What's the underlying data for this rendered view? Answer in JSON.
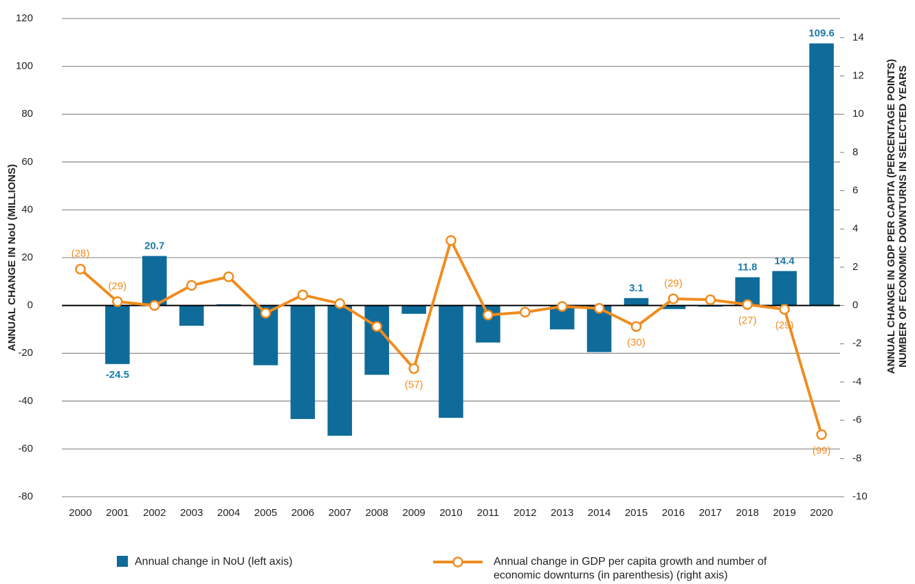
{
  "chart_data": {
    "type": "bar_line",
    "categories": [
      "2000",
      "2001",
      "2002",
      "2003",
      "2004",
      "2005",
      "2006",
      "2007",
      "2008",
      "2009",
      "2010",
      "2011",
      "2012",
      "2013",
      "2014",
      "2015",
      "2016",
      "2017",
      "2018",
      "2019",
      "2020"
    ],
    "ylabel": "ANNUAL CHANGE IN NoU (MILLIONS)",
    "y2label": [
      "ANNUAL CHANGE IN GDP PER CAPITA (PERCENTAGE POINTS)",
      "NUMBER OF ECONOMIC DOWNTURNS IN SELECTED YEARS"
    ],
    "ylim": [
      -80,
      120
    ],
    "yticks": [
      -80,
      -60,
      -40,
      -20,
      0,
      20,
      40,
      60,
      80,
      100,
      120
    ],
    "y2lim": [
      -10,
      15
    ],
    "y2ticks": [
      -10,
      -8,
      -6,
      -4,
      -2,
      0,
      2,
      4,
      6,
      8,
      10,
      12,
      14
    ],
    "grid": true,
    "series": [
      {
        "name": "Annual change in NoU (left axis)",
        "type": "bar",
        "color": "#0f6b9a",
        "label_color": "#1a7aa8",
        "values": [
          null,
          -24.5,
          20.7,
          -8.5,
          0.5,
          -25,
          -47.5,
          -54.5,
          -29,
          -3.5,
          -47,
          -15.5,
          null,
          -10,
          -19.5,
          3.1,
          -1.5,
          -0.5,
          11.8,
          14.4,
          109.6
        ],
        "value_labels": [
          null,
          "-24.5",
          "20.7",
          null,
          null,
          null,
          null,
          null,
          null,
          null,
          null,
          null,
          null,
          null,
          null,
          "3.1",
          null,
          null,
          "11.8",
          "14.4",
          "109.6"
        ]
      },
      {
        "name": "Annual change in GDP per capita growth and number of economic downturns (in parenthesis) (right axis)",
        "type": "line",
        "axis": "y2",
        "color": "#f08c1e",
        "values": [
          1.9,
          0.2,
          0.0,
          1.05,
          1.5,
          -0.4,
          0.55,
          0.1,
          -1.1,
          -3.3,
          3.4,
          -0.5,
          -0.35,
          -0.05,
          -0.15,
          -1.1,
          0.35,
          0.3,
          0.05,
          -0.2,
          -6.75
        ],
        "point_labels": [
          "(28)",
          "(29)",
          null,
          null,
          null,
          null,
          null,
          null,
          null,
          "(57)",
          null,
          null,
          null,
          null,
          null,
          "(30)",
          "(29)",
          null,
          "(27)",
          "(29)",
          "(99)"
        ]
      }
    ]
  }
}
